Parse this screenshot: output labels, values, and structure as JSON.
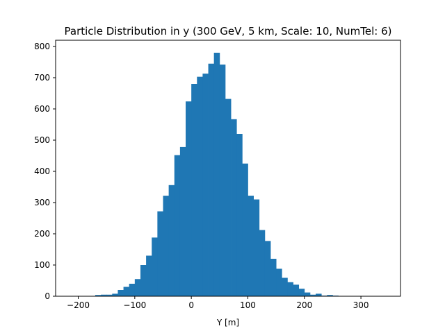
{
  "chart_data": {
    "type": "bar",
    "title": "Particle Distribution in y (300 GeV, 5 km, Scale: 10, NumTel: 6)",
    "xlabel": "Y [m]",
    "ylabel": "",
    "xlim": [
      -240,
      370
    ],
    "ylim": [
      0,
      820
    ],
    "grid": false,
    "legend": "none",
    "bar_color": "#1f77b4",
    "x_ticks": [
      -200,
      -100,
      0,
      100,
      200,
      300
    ],
    "y_ticks": [
      0,
      100,
      200,
      300,
      400,
      500,
      600,
      700,
      800
    ],
    "bin_width": 10,
    "bin_left_edges": [
      -220,
      -210,
      -200,
      -190,
      -180,
      -170,
      -160,
      -150,
      -140,
      -130,
      -120,
      -110,
      -100,
      -90,
      -80,
      -70,
      -60,
      -50,
      -40,
      -30,
      -20,
      -10,
      0,
      10,
      20,
      30,
      40,
      50,
      60,
      70,
      80,
      90,
      100,
      110,
      120,
      130,
      140,
      150,
      160,
      170,
      180,
      190,
      200,
      210,
      220,
      230,
      240,
      250,
      260,
      270,
      280,
      290,
      300,
      310,
      320,
      330,
      340,
      350
    ],
    "values": [
      0,
      0,
      0,
      0,
      1,
      4,
      5,
      5,
      8,
      20,
      30,
      40,
      55,
      100,
      130,
      188,
      272,
      322,
      356,
      452,
      478,
      624,
      680,
      703,
      713,
      745,
      780,
      742,
      632,
      567,
      520,
      425,
      322,
      310,
      212,
      177,
      120,
      88,
      59,
      45,
      37,
      24,
      12,
      5,
      8,
      2,
      4,
      2,
      1,
      0,
      0,
      0,
      0,
      0,
      0,
      0,
      0,
      0
    ]
  }
}
